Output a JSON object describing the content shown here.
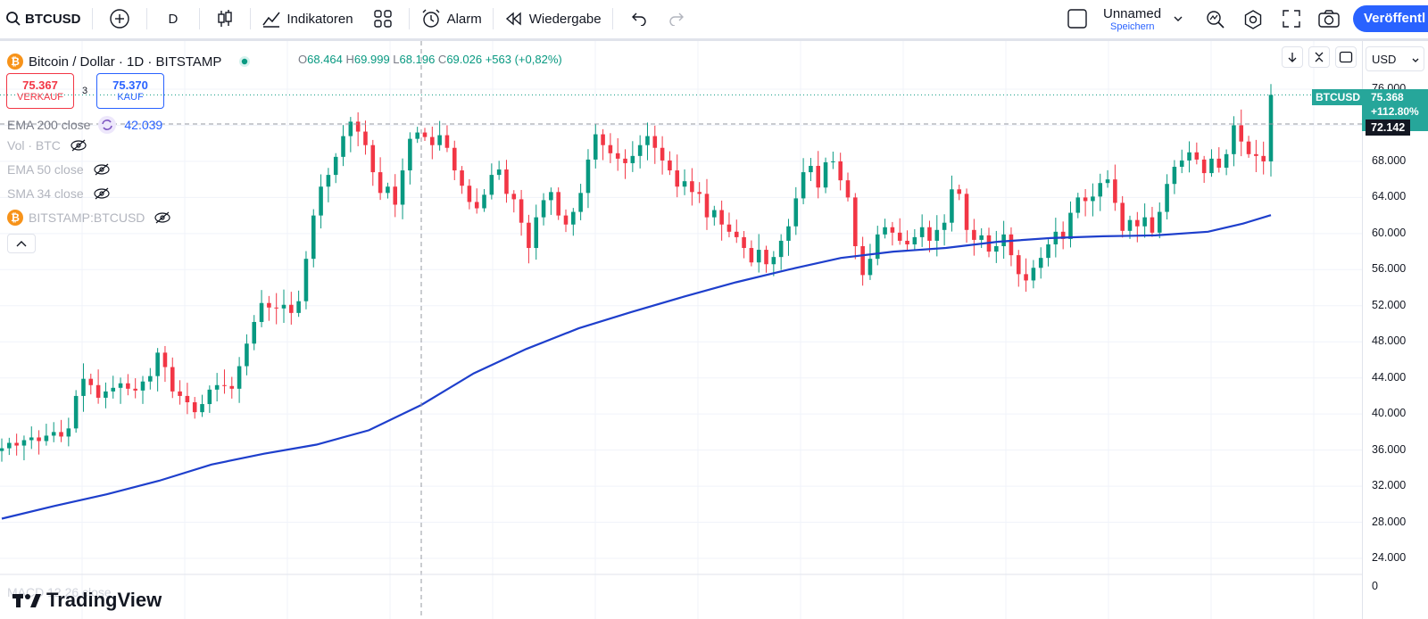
{
  "toolbar": {
    "symbol": "BTCUSD",
    "interval": "D",
    "indicators_label": "Indikatoren",
    "alert_label": "Alarm",
    "replay_label": "Wiedergabe",
    "layout_name": "Unnamed",
    "layout_save": "Speichern",
    "publish_label": "Veröffentl"
  },
  "legend": {
    "title": "Bitcoin / Dollar · 1D · BITSTAMP",
    "btc_glyph": "₿",
    "ohlc": {
      "o_key": "O",
      "o": "68.464",
      "h_key": "H",
      "h": "69.999",
      "l_key": "L",
      "l": "68.196",
      "c_key": "C",
      "c": "69.026",
      "change": "+563 (+0,82%)"
    },
    "sell_price": "75.367",
    "sell_label": "VERKAUF",
    "buy_price": "75.370",
    "buy_label": "KAUF",
    "spread": "3",
    "indicators": [
      {
        "label": "EMA 200 close",
        "value": "42.039"
      },
      {
        "label": "Vol · BTC"
      },
      {
        "label": "EMA 50 close"
      },
      {
        "label": "SMA 34 close"
      },
      {
        "label": "BITSTAMP:BTCUSD"
      }
    ],
    "macd_label": "MACD 12 26 close"
  },
  "currency": "USD",
  "price_axis": [
    "76.000",
    "72.000",
    "68.000",
    "64.000",
    "60.000",
    "56.000",
    "52.000",
    "48.000",
    "44.000",
    "40.000",
    "36.000",
    "32.000",
    "28.000",
    "24.000",
    "0"
  ],
  "last_price": {
    "symbol": "BTCUSD",
    "price": "75.368",
    "change": "+112.80%"
  },
  "crosshair_price": "72.142",
  "brand": "TradingView",
  "colors": {
    "up": "#089981",
    "down": "#f23645",
    "ema200": "#1e3fcc",
    "accent": "#2962ff",
    "grid": "#f0f3fa"
  },
  "chart_data": {
    "type": "candlestick",
    "title": "Bitcoin / Dollar · 1D · BITSTAMP",
    "ylim": [
      24000,
      76000
    ],
    "y_ticks": [
      24000,
      28000,
      32000,
      36000,
      40000,
      44000,
      48000,
      52000,
      56000,
      60000,
      64000,
      68000,
      72000,
      76000
    ],
    "close_series": [
      36200,
      36800,
      36500,
      37100,
      37400,
      37000,
      37600,
      38000,
      37500,
      38400,
      42000,
      43900,
      43200,
      41800,
      42500,
      42900,
      43400,
      42800,
      42600,
      43600,
      44200,
      46800,
      45200,
      42500,
      42000,
      41300,
      40200,
      41100,
      42700,
      43200,
      43100,
      42800,
      45300,
      47800,
      50200,
      52300,
      51800,
      51700,
      52100,
      51200,
      52500,
      57200,
      62000,
      65200,
      66500,
      68500,
      70800,
      72400,
      71300,
      69800,
      66800,
      64500,
      65200,
      63200,
      67000,
      70500,
      71200,
      70700,
      69800,
      70900,
      69500,
      67000,
      65300,
      63500,
      62800,
      64300,
      66500,
      67100,
      64400,
      63800,
      61200,
      58400,
      61800,
      63700,
      64600,
      62000,
      61000,
      62400,
      64500,
      68200,
      71000,
      69800,
      68900,
      68300,
      67800,
      68600,
      69800,
      70800,
      69500,
      68100,
      67000,
      65200,
      65800,
      64600,
      64400,
      61800,
      62600,
      61000,
      60200,
      59600,
      58400,
      56800,
      58200,
      56600,
      57400,
      59200,
      60800,
      63900,
      66800,
      67500,
      65100,
      67900,
      68000,
      65900,
      64000,
      58600,
      55400,
      57200,
      59900,
      60700,
      60100,
      59200,
      58800,
      59600,
      60700,
      59200,
      60400,
      61200,
      64900,
      64400,
      60400,
      59300,
      59800,
      58000,
      58600,
      59900,
      57600,
      55500,
      54800,
      56200,
      57300,
      58800,
      60200,
      59400,
      62300,
      64000,
      63600,
      64100,
      65600,
      66000,
      63400,
      60300,
      61500,
      60800,
      61800,
      60100,
      62400,
      65500,
      67400,
      68100,
      69000,
      68200,
      66700,
      68300,
      67300,
      68800,
      72000,
      70200,
      68800,
      68600,
      68000,
      75368
    ],
    "ema200_series": [
      [
        0,
        28400
      ],
      [
        30,
        29800
      ],
      [
        60,
        31100
      ],
      [
        90,
        32600
      ],
      [
        120,
        34400
      ],
      [
        150,
        35600
      ],
      [
        180,
        36600
      ],
      [
        210,
        38200
      ],
      [
        240,
        41000
      ],
      [
        270,
        44500
      ],
      [
        300,
        47200
      ],
      [
        330,
        49500
      ],
      [
        360,
        51300
      ],
      [
        390,
        53000
      ],
      [
        420,
        54600
      ],
      [
        450,
        56000
      ],
      [
        480,
        57300
      ],
      [
        510,
        58000
      ],
      [
        540,
        58400
      ],
      [
        570,
        59100
      ],
      [
        600,
        59500
      ],
      [
        630,
        59700
      ],
      [
        660,
        59800
      ],
      [
        690,
        60200
      ],
      [
        710,
        61100
      ],
      [
        726,
        62039
      ]
    ]
  }
}
